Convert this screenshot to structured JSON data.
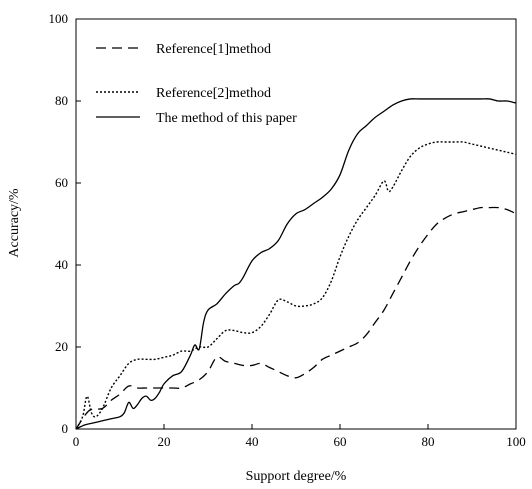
{
  "chart_data": {
    "type": "line",
    "title": "",
    "xlabel": "Support degree/%",
    "ylabel": "Accuracy/%",
    "xlim": [
      0,
      100
    ],
    "ylim": [
      0,
      100
    ],
    "xticks": [
      0,
      20,
      40,
      60,
      80,
      100
    ],
    "yticks": [
      0,
      20,
      40,
      60,
      80,
      100
    ],
    "grid": false,
    "legend_position": "top-left",
    "series": [
      {
        "name": "Reference[1]method",
        "style": "dashed",
        "color": "#000000",
        "x": [
          0,
          3,
          6,
          8,
          10,
          12,
          14,
          16,
          18,
          20,
          22,
          24,
          26,
          28,
          30,
          32,
          34,
          36,
          38,
          40,
          42,
          44,
          46,
          48,
          50,
          52,
          54,
          56,
          58,
          60,
          62,
          64,
          66,
          68,
          70,
          72,
          74,
          76,
          78,
          80,
          82,
          84,
          86,
          88,
          90,
          92,
          94,
          96,
          98,
          100
        ],
        "y": [
          0,
          4.5,
          5,
          7,
          8.5,
          10.5,
          10,
          10,
          10,
          10,
          10,
          10,
          11,
          12,
          14,
          17.5,
          16.5,
          16,
          15.5,
          15.5,
          16,
          15,
          14,
          13,
          12.5,
          13.5,
          15,
          17,
          18,
          19,
          20,
          21,
          23,
          26,
          29,
          33,
          37,
          41,
          44.5,
          47.5,
          50,
          51.5,
          52.5,
          53,
          53.5,
          54,
          54,
          54,
          53.5,
          52.5
        ]
      },
      {
        "name": "Reference[2]method",
        "style": "dotted",
        "color": "#000000",
        "x": [
          0,
          1.5,
          2.5,
          3.5,
          4.5,
          6,
          8,
          10,
          12,
          14,
          16,
          18,
          20,
          22,
          24,
          26,
          28,
          30,
          32,
          34,
          36,
          38,
          40,
          42,
          44,
          46,
          48,
          50,
          52,
          54,
          56,
          58,
          60,
          62,
          64,
          66,
          68,
          70,
          71,
          72,
          74,
          76,
          78,
          80,
          82,
          84,
          86,
          88,
          90,
          92,
          94,
          96,
          98,
          100
        ],
        "y": [
          0,
          3,
          8,
          4,
          3,
          5,
          10,
          13,
          16,
          17,
          17,
          17,
          17.5,
          18,
          19,
          19,
          20,
          20,
          22,
          24,
          24,
          23.5,
          23.5,
          25,
          28,
          31.5,
          31,
          30,
          30,
          30.5,
          32,
          36,
          42,
          47,
          51,
          54,
          57,
          60.5,
          58,
          59,
          63,
          66.5,
          68.5,
          69.5,
          70,
          70,
          70,
          70,
          69.5,
          69,
          68.5,
          68,
          67.5,
          67
        ]
      },
      {
        "name": "The method of this paper",
        "style": "solid",
        "color": "#000000",
        "x": [
          0,
          2,
          4,
          6,
          8,
          10,
          11,
          12,
          13,
          14,
          15,
          16,
          17,
          18,
          19,
          20,
          22,
          24,
          26,
          27,
          28,
          29,
          30,
          32,
          34,
          36,
          37,
          38,
          40,
          42,
          44,
          46,
          48,
          50,
          52,
          54,
          56,
          58,
          60,
          62,
          64,
          66,
          68,
          70,
          72,
          74,
          76,
          78,
          80,
          82,
          84,
          86,
          88,
          90,
          92,
          94,
          96,
          98,
          100
        ],
        "y": [
          0,
          1,
          1.5,
          2,
          2.5,
          3,
          4,
          6.5,
          5,
          6,
          7.5,
          8,
          7,
          7.5,
          9,
          11,
          13,
          14,
          18,
          20.5,
          19.5,
          26,
          29,
          30.5,
          33,
          35,
          35.5,
          37,
          41,
          43,
          44,
          46,
          50,
          52.5,
          53.5,
          55,
          56.5,
          58.5,
          62,
          68,
          72,
          74,
          76,
          77.5,
          79,
          80,
          80.5,
          80.5,
          80.5,
          80.5,
          80.5,
          80.5,
          80.5,
          80.5,
          80.5,
          80.5,
          80,
          80,
          79.5
        ]
      }
    ]
  }
}
